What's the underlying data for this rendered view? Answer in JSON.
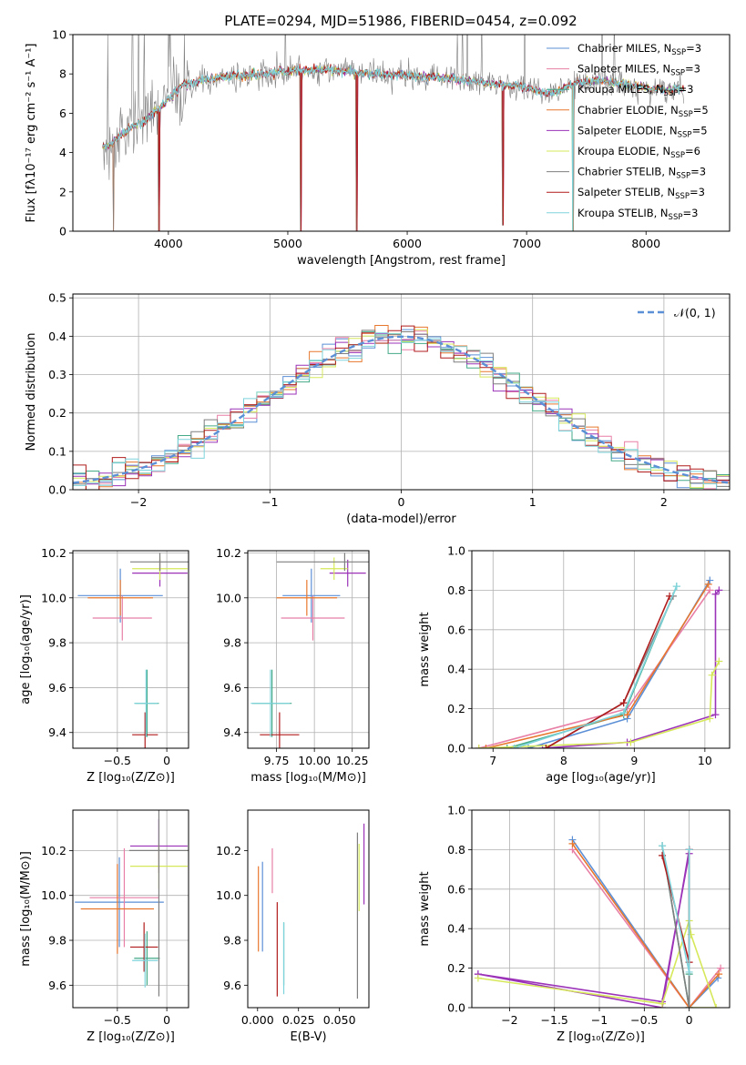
{
  "figure": {
    "title": "PLATE=0294, MJD=51986, FIBERID=0454, z=0.092"
  },
  "colors": {
    "Chabrier MILES": "#5b8fd6",
    "Salpeter MILES": "#e87fa6",
    "Kroupa MILES": "#44aa88",
    "Chabrier ELODIE": "#e8772e",
    "Salpeter ELODIE": "#9b32b8",
    "Kroupa ELODIE": "#d6e85a",
    "Chabrier STELIB": "#7f7f7f",
    "Salpeter STELIB": "#b01c1c",
    "Kroupa STELIB": "#7ed4dc"
  },
  "chart_data": [
    {
      "id": "spectrum",
      "type": "line",
      "title": "PLATE=0294, MJD=51986, FIBERID=0454, z=0.092",
      "xlabel": "wavelength [Angstrom, rest frame]",
      "ylabel": "Flux [fλ10⁻¹⁷ erg cm⁻² s⁻¹ A⁻¹]",
      "xlim": [
        3200,
        8700
      ],
      "ylim": [
        0,
        10
      ],
      "xticks": [
        4000,
        5000,
        6000,
        7000,
        8000
      ],
      "yticks": [
        0,
        2,
        4,
        6,
        8,
        10
      ],
      "grid": false,
      "legend_position": "top-right",
      "legend": [
        {
          "label": "Chabrier MILES, N",
          "sub": "SSP",
          "rest": "=3"
        },
        {
          "label": "Salpeter MILES, N",
          "sub": "SSP",
          "rest": "=3"
        },
        {
          "label": "Kroupa MILES, N",
          "sub": "SSP",
          "rest": "=3"
        },
        {
          "label": "Chabrier ELODIE, N",
          "sub": "SSP",
          "rest": "=5"
        },
        {
          "label": "Salpeter ELODIE, N",
          "sub": "SSP",
          "rest": "=5"
        },
        {
          "label": "Kroupa ELODIE, N",
          "sub": "SSP",
          "rest": "=6"
        },
        {
          "label": "Chabrier STELIB, N",
          "sub": "SSP",
          "rest": "=3"
        },
        {
          "label": "Salpeter STELIB, N",
          "sub": "SSP",
          "rest": "=3"
        },
        {
          "label": "Kroupa STELIB, N",
          "sub": "SSP",
          "rest": "=3"
        }
      ],
      "continuum_anchors": {
        "x": [
          3500,
          3600,
          3700,
          3800,
          3900,
          4000,
          4100,
          4300,
          4500,
          4800,
          5100,
          5400,
          5700,
          6000,
          6300,
          6600,
          6900,
          7100,
          7200,
          7400,
          7600,
          7800,
          8000,
          8200,
          8300
        ],
        "y": [
          4.3,
          4.9,
          5.3,
          5.6,
          6.1,
          6.7,
          7.4,
          7.7,
          7.9,
          8.0,
          8.2,
          8.2,
          8.0,
          7.9,
          7.8,
          7.6,
          7.4,
          7.1,
          7.0,
          7.5,
          7.7,
          7.5,
          7.3,
          7.2,
          7.3
        ]
      },
      "spikes": [
        {
          "x": 5577,
          "y": 0.0
        },
        {
          "x": 5110,
          "y": 0.0
        },
        {
          "x": 6800,
          "y": 0.3
        },
        {
          "x": 3920,
          "y": 0.0
        },
        {
          "x": 3540,
          "y": 0.0
        },
        {
          "x": 7390,
          "y": 0.0
        }
      ]
    },
    {
      "id": "residuals",
      "type": "bar",
      "xlabel": "(data-model)/error",
      "ylabel": "Normed distribution",
      "xlim": [
        -2.5,
        2.5
      ],
      "ylim": [
        0,
        0.51
      ],
      "xticks": [
        -2,
        -1,
        0,
        1,
        2
      ],
      "yticks": [
        0.0,
        0.1,
        0.2,
        0.3,
        0.4,
        0.5
      ],
      "grid": true,
      "legend_position": "top-right",
      "legend": [
        {
          "label": "𝒩(0, 1)"
        }
      ],
      "bin_width": 0.1,
      "bin_start": -2.5,
      "gaussian": {
        "mu": 0,
        "sigma": 1,
        "color": "#5b8fd6"
      }
    },
    {
      "id": "age_vs_Z",
      "type": "scatter",
      "xlabel": "Z [log₁₀(Z/Z⊙)]",
      "ylabel": "age  [log₁₀(age/yr)]",
      "xlim": [
        -0.95,
        0.22
      ],
      "ylim": [
        9.33,
        10.21
      ],
      "xticks": [
        -0.5,
        0.0
      ],
      "yticks": [
        9.4,
        9.6,
        9.8,
        10.0,
        10.2
      ],
      "grid": true,
      "points": [
        {
          "model": "Chabrier MILES",
          "x": -0.47,
          "y": 10.01,
          "xerr": 0.43,
          "yerr": 0.12
        },
        {
          "model": "Salpeter MILES",
          "x": -0.45,
          "y": 9.91,
          "xerr": 0.3,
          "yerr": 0.1
        },
        {
          "model": "Kroupa MILES",
          "x": -0.2,
          "y": 9.53,
          "xerr": 0.12,
          "yerr": 0.15
        },
        {
          "model": "Chabrier ELODIE",
          "x": -0.47,
          "y": 10.0,
          "xerr": 0.33,
          "yerr": 0.08
        },
        {
          "model": "Salpeter ELODIE",
          "x": -0.07,
          "y": 10.11,
          "xerr": 0.28,
          "yerr": 0.06
        },
        {
          "model": "Kroupa ELODIE",
          "x": -0.07,
          "y": 10.13,
          "xerr": 0.28,
          "yerr": 0.05
        },
        {
          "model": "Chabrier STELIB",
          "x": -0.07,
          "y": 10.16,
          "xerr": 0.3,
          "yerr": 0.04
        },
        {
          "model": "Salpeter STELIB",
          "x": -0.22,
          "y": 9.39,
          "xerr": 0.13,
          "yerr": 0.1
        },
        {
          "model": "Kroupa STELIB",
          "x": -0.21,
          "y": 9.53,
          "xerr": 0.12,
          "yerr": 0.15
        }
      ]
    },
    {
      "id": "age_vs_mass",
      "type": "scatter",
      "xlabel": "mass [log₁₀(M/M⊙)]",
      "ylabel": "",
      "xlim": [
        9.56,
        10.36
      ],
      "ylim": [
        9.33,
        10.21
      ],
      "xticks": [
        9.75,
        10.0,
        10.25
      ],
      "xticklabels": [
        "9.75",
        "10.00",
        "10.25"
      ],
      "yticks": [
        9.4,
        9.6,
        9.8,
        10.0,
        10.2
      ],
      "grid": true,
      "points": [
        {
          "model": "Chabrier MILES",
          "x": 9.98,
          "y": 10.01,
          "xerr": 0.19,
          "yerr": 0.12
        },
        {
          "model": "Salpeter MILES",
          "x": 9.99,
          "y": 9.91,
          "xerr": 0.21,
          "yerr": 0.1
        },
        {
          "model": "Kroupa MILES",
          "x": 9.72,
          "y": 9.53,
          "xerr": 0.13,
          "yerr": 0.15
        },
        {
          "model": "Chabrier ELODIE",
          "x": 9.95,
          "y": 10.0,
          "xerr": 0.2,
          "yerr": 0.08
        },
        {
          "model": "Salpeter ELODIE",
          "x": 10.22,
          "y": 10.11,
          "xerr": 0.12,
          "yerr": 0.06
        },
        {
          "model": "Kroupa ELODIE",
          "x": 10.13,
          "y": 10.13,
          "xerr": 0.09,
          "yerr": 0.05
        },
        {
          "model": "Chabrier STELIB",
          "x": 10.2,
          "y": 10.16,
          "xerr": 0.45,
          "yerr": 0.04
        },
        {
          "model": "Salpeter STELIB",
          "x": 9.77,
          "y": 9.39,
          "xerr": 0.13,
          "yerr": 0.1
        },
        {
          "model": "Kroupa STELIB",
          "x": 9.71,
          "y": 9.53,
          "xerr": 0.13,
          "yerr": 0.15
        }
      ]
    },
    {
      "id": "weight_vs_age",
      "type": "line",
      "xlabel": "age  [log₁₀(age/yr)]",
      "ylabel": "mass weight",
      "xlim": [
        6.7,
        10.35
      ],
      "ylim": [
        0,
        1.0
      ],
      "xticks": [
        7,
        8,
        9,
        10
      ],
      "yticks": [
        0.0,
        0.2,
        0.4,
        0.6,
        0.8,
        1.0
      ],
      "grid": true,
      "series": [
        {
          "model": "Chabrier MILES",
          "x": [
            7.5,
            8.9,
            10.07
          ],
          "y": [
            0.0,
            0.15,
            0.85
          ]
        },
        {
          "model": "Salpeter MILES",
          "x": [
            6.8,
            8.9,
            10.07
          ],
          "y": [
            0.0,
            0.2,
            0.8
          ]
        },
        {
          "model": "Kroupa MILES",
          "x": [
            7.2,
            8.85,
            9.6
          ],
          "y": [
            0.0,
            0.17,
            0.82
          ]
        },
        {
          "model": "Chabrier ELODIE",
          "x": [
            6.9,
            8.9,
            10.05
          ],
          "y": [
            0.0,
            0.17,
            0.83
          ]
        },
        {
          "model": "Salpeter ELODIE",
          "x": [
            7.7,
            8.9,
            10.15,
            10.15,
            10.2
          ],
          "y": [
            0.0,
            0.03,
            0.17,
            0.78,
            0.8
          ]
        },
        {
          "model": "Kroupa ELODIE",
          "x": [
            6.8,
            8.95,
            10.07,
            10.1,
            10.2
          ],
          "y": [
            0.0,
            0.03,
            0.15,
            0.37,
            0.44
          ]
        },
        {
          "model": "Chabrier STELIB",
          "x": [
            7.75,
            8.85,
            9.55
          ],
          "y": [
            0.0,
            0.23,
            0.77
          ]
        },
        {
          "model": "Salpeter STELIB",
          "x": [
            7.75,
            8.85,
            9.5
          ],
          "y": [
            0.0,
            0.23,
            0.77
          ]
        },
        {
          "model": "Kroupa STELIB",
          "x": [
            7.3,
            8.85,
            9.6
          ],
          "y": [
            0.0,
            0.18,
            0.82
          ]
        }
      ]
    },
    {
      "id": "mass_vs_Z",
      "type": "scatter",
      "xlabel": "Z [log₁₀(Z/Z⊙)]",
      "ylabel": "mass [log₁₀(M/M⊙)]",
      "xlim": [
        -0.95,
        0.22
      ],
      "ylim": [
        9.5,
        10.38
      ],
      "xticks": [
        -0.5,
        0.0
      ],
      "yticks": [
        9.6,
        9.8,
        10.0,
        10.2
      ],
      "grid": true,
      "points": [
        {
          "model": "Chabrier MILES",
          "x": -0.48,
          "y": 9.97,
          "xerr": 0.45,
          "yerr": 0.2
        },
        {
          "model": "Salpeter MILES",
          "x": -0.43,
          "y": 9.99,
          "xerr": 0.35,
          "yerr": 0.22
        },
        {
          "model": "Kroupa MILES",
          "x": -0.2,
          "y": 9.72,
          "xerr": 0.13,
          "yerr": 0.12
        },
        {
          "model": "Chabrier ELODIE",
          "x": -0.5,
          "y": 9.94,
          "xerr": 0.37,
          "yerr": 0.2
        },
        {
          "model": "Salpeter ELODIE",
          "x": -0.08,
          "y": 10.22,
          "xerr": 0.29,
          "yerr": 0.12
        },
        {
          "model": "Kroupa ELODIE",
          "x": -0.08,
          "y": 10.13,
          "xerr": 0.29,
          "yerr": 0.1
        },
        {
          "model": "Chabrier STELIB",
          "x": -0.08,
          "y": 10.2,
          "xerr": 0.3,
          "yerr": 0.65
        },
        {
          "model": "Salpeter STELIB",
          "x": -0.23,
          "y": 9.77,
          "xerr": 0.14,
          "yerr": 0.11
        },
        {
          "model": "Kroupa STELIB",
          "x": -0.22,
          "y": 9.71,
          "xerr": 0.13,
          "yerr": 0.12
        }
      ]
    },
    {
      "id": "mass_vs_EBV",
      "type": "scatter",
      "xlabel": "E(B-V)",
      "ylabel": "",
      "xlim": [
        -0.006,
        0.068
      ],
      "ylim": [
        9.5,
        10.38
      ],
      "xticks": [
        0.0,
        0.025,
        0.05
      ],
      "xticklabels": [
        "0.000",
        "0.025",
        "0.050"
      ],
      "yticks": [
        9.6,
        9.8,
        10.0,
        10.2
      ],
      "grid": false,
      "points": [
        {
          "model": "Chabrier MILES",
          "x": 0.003,
          "y": 9.95,
          "yerr": 0.2
        },
        {
          "model": "Salpeter MILES",
          "x": 0.009,
          "y": 10.11,
          "yerr": 0.1
        },
        {
          "model": "Kroupa MILES",
          "x": 0.016,
          "y": 9.74,
          "yerr": 0.14
        },
        {
          "model": "Chabrier ELODIE",
          "x": 0.0005,
          "y": 9.94,
          "yerr": 0.19
        },
        {
          "model": "Salpeter ELODIE",
          "x": 0.065,
          "y": 10.14,
          "yerr": 0.18
        },
        {
          "model": "Kroupa ELODIE",
          "x": 0.062,
          "y": 10.08,
          "yerr": 0.15
        },
        {
          "model": "Chabrier STELIB",
          "x": 0.061,
          "y": 9.91,
          "yerr": 0.37
        },
        {
          "model": "Salpeter STELIB",
          "x": 0.012,
          "y": 9.76,
          "yerr": 0.21
        },
        {
          "model": "Kroupa STELIB",
          "x": 0.016,
          "y": 9.72,
          "yerr": 0.16
        }
      ]
    },
    {
      "id": "weight_vs_Z",
      "type": "line",
      "xlabel": "Z [log₁₀(Z/Z⊙)]",
      "ylabel": "mass weight",
      "xlim": [
        -2.42,
        0.45
      ],
      "ylim": [
        0,
        1.0
      ],
      "xticks": [
        -2.0,
        -1.5,
        -1.0,
        -0.5,
        0.0
      ],
      "yticks": [
        0.0,
        0.2,
        0.4,
        0.6,
        0.8,
        1.0
      ],
      "grid": true,
      "series": [
        {
          "model": "Chabrier MILES",
          "x": [
            -1.3,
            0.0,
            0.32
          ],
          "y": [
            0.85,
            0.0,
            0.15
          ]
        },
        {
          "model": "Salpeter MILES",
          "x": [
            -1.3,
            0.0,
            0.35
          ],
          "y": [
            0.8,
            0.0,
            0.2
          ]
        },
        {
          "model": "Kroupa MILES",
          "x": [
            -0.3,
            0.0,
            0.0
          ],
          "y": [
            0.82,
            0.0,
            0.17
          ]
        },
        {
          "model": "Chabrier ELODIE",
          "x": [
            -1.3,
            0.0,
            0.33
          ],
          "y": [
            0.83,
            0.0,
            0.17
          ]
        },
        {
          "model": "Salpeter ELODIE",
          "x": [
            -2.35,
            -0.3,
            0.0,
            0.0,
            -0.3,
            -2.35
          ],
          "y": [
            0.17,
            0.03,
            0.78,
            0.8,
            0.0,
            0.17
          ]
        },
        {
          "model": "Kroupa ELODIE",
          "x": [
            -2.35,
            -0.3,
            0.0,
            0.02,
            0.3,
            0.0
          ],
          "y": [
            0.15,
            0.02,
            0.44,
            0.37,
            0.0,
            0.0
          ]
        },
        {
          "model": "Chabrier STELIB",
          "x": [
            -0.3,
            0.0,
            0.0
          ],
          "y": [
            0.82,
            0.0,
            0.8
          ]
        },
        {
          "model": "Salpeter STELIB",
          "x": [
            -0.3,
            0.0,
            0.0
          ],
          "y": [
            0.77,
            0.23,
            0.8
          ]
        },
        {
          "model": "Kroupa STELIB",
          "x": [
            -0.3,
            0.0,
            0.0
          ],
          "y": [
            0.82,
            0.18,
            0.8
          ]
        }
      ]
    }
  ]
}
